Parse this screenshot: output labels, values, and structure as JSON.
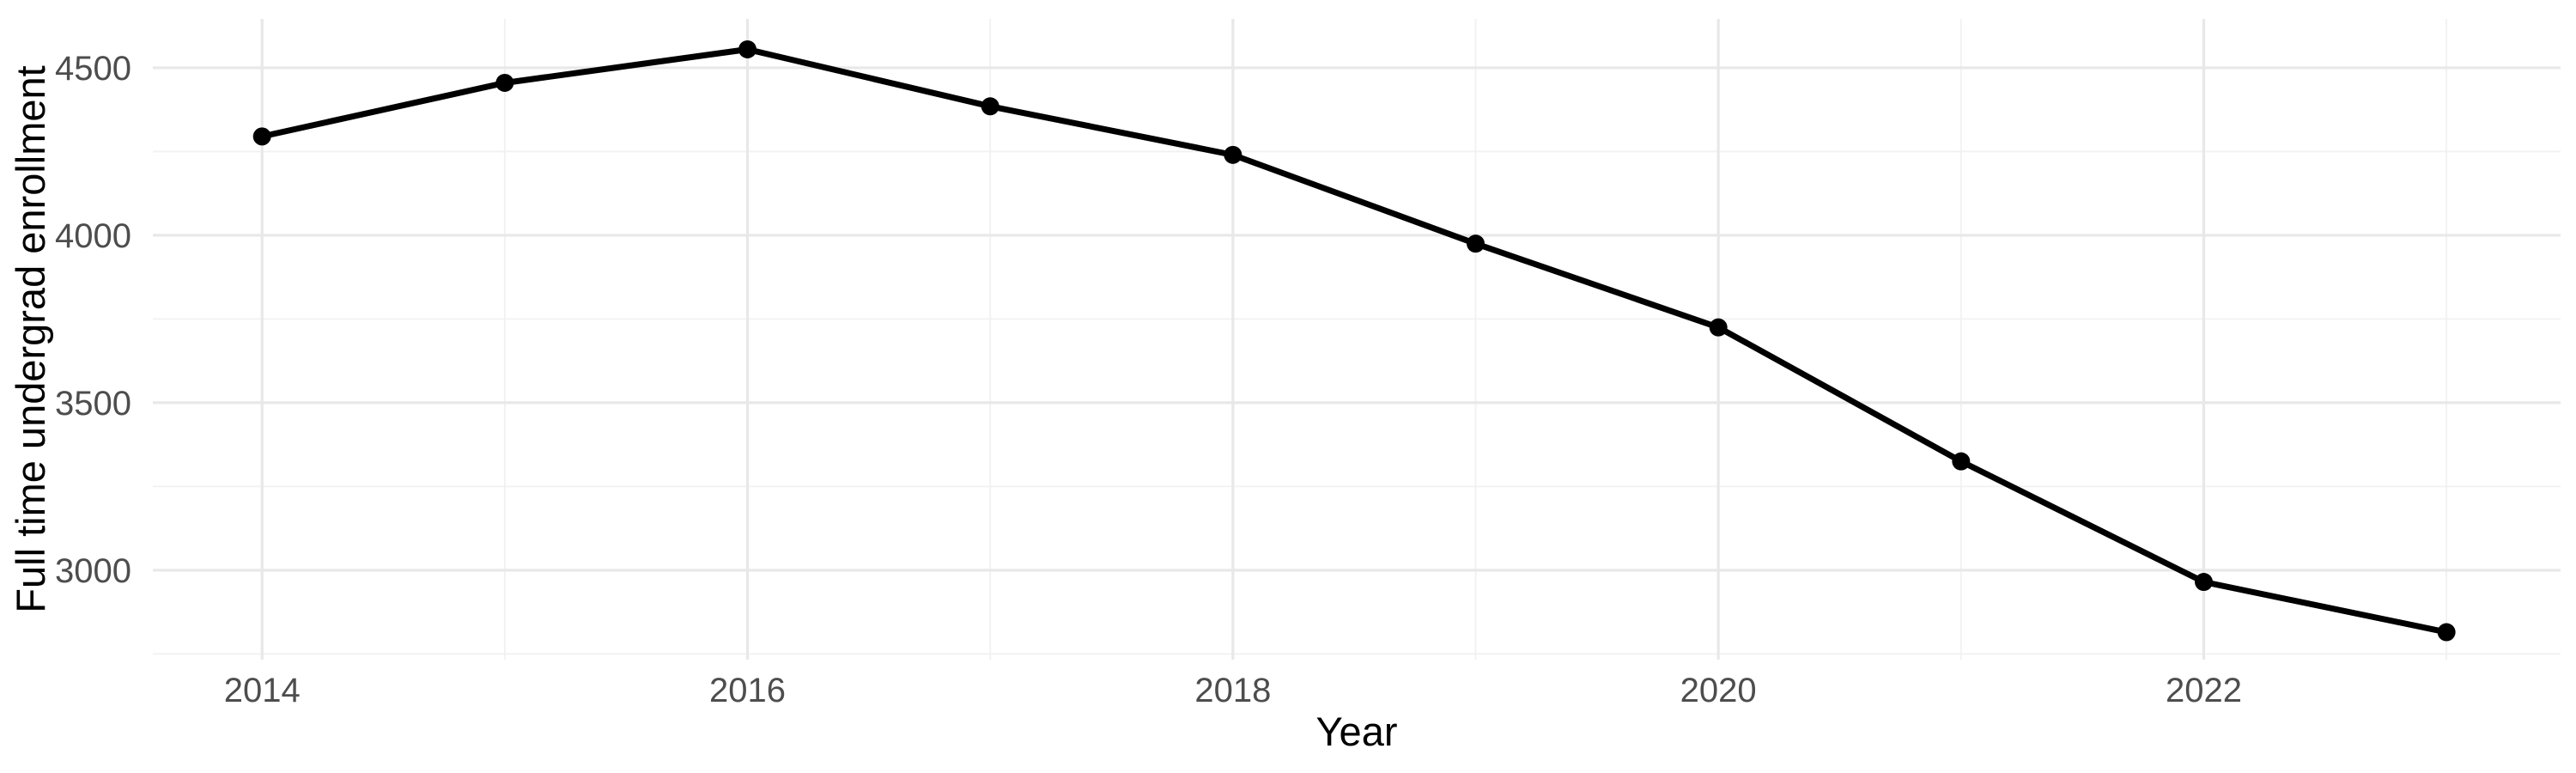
{
  "chart_data": {
    "type": "line",
    "title": "",
    "xlabel": "Year",
    "ylabel": "Full time undergrad enrollment",
    "series": [
      {
        "name": "Full time undergrad enrollment",
        "x": [
          2014,
          2015,
          2016,
          2017,
          2018,
          2019,
          2020,
          2021,
          2022,
          2023
        ],
        "values": [
          4295,
          4455,
          4555,
          4385,
          4240,
          3975,
          3725,
          3325,
          2965,
          2815
        ]
      }
    ],
    "x_major_ticks": [
      2014,
      2016,
      2018,
      2020,
      2022
    ],
    "x_tick_labels": [
      "2014",
      "2016",
      "2018",
      "2020",
      "2022"
    ],
    "x_minor_gridlines": [
      2015,
      2017,
      2019,
      2021,
      2023
    ],
    "y_major_ticks": [
      3000,
      3500,
      4000,
      4500
    ],
    "y_tick_labels": [
      "3000",
      "3500",
      "4000",
      "4500"
    ],
    "y_minor_gridlines": [
      2750,
      3250,
      3750,
      4250
    ],
    "xlim": [
      2013.55,
      2023.47
    ],
    "ylim": [
      2733,
      4646
    ],
    "grid": true,
    "legend": false,
    "marker": "filled-circle",
    "colors": {
      "line": "#000000",
      "point": "#000000",
      "axis_text": "#4D4D4D",
      "axis_title": "#000000",
      "grid_major": "#E8E8E8",
      "grid_minor": "#F1F1F1",
      "background": "#FFFFFF"
    }
  }
}
